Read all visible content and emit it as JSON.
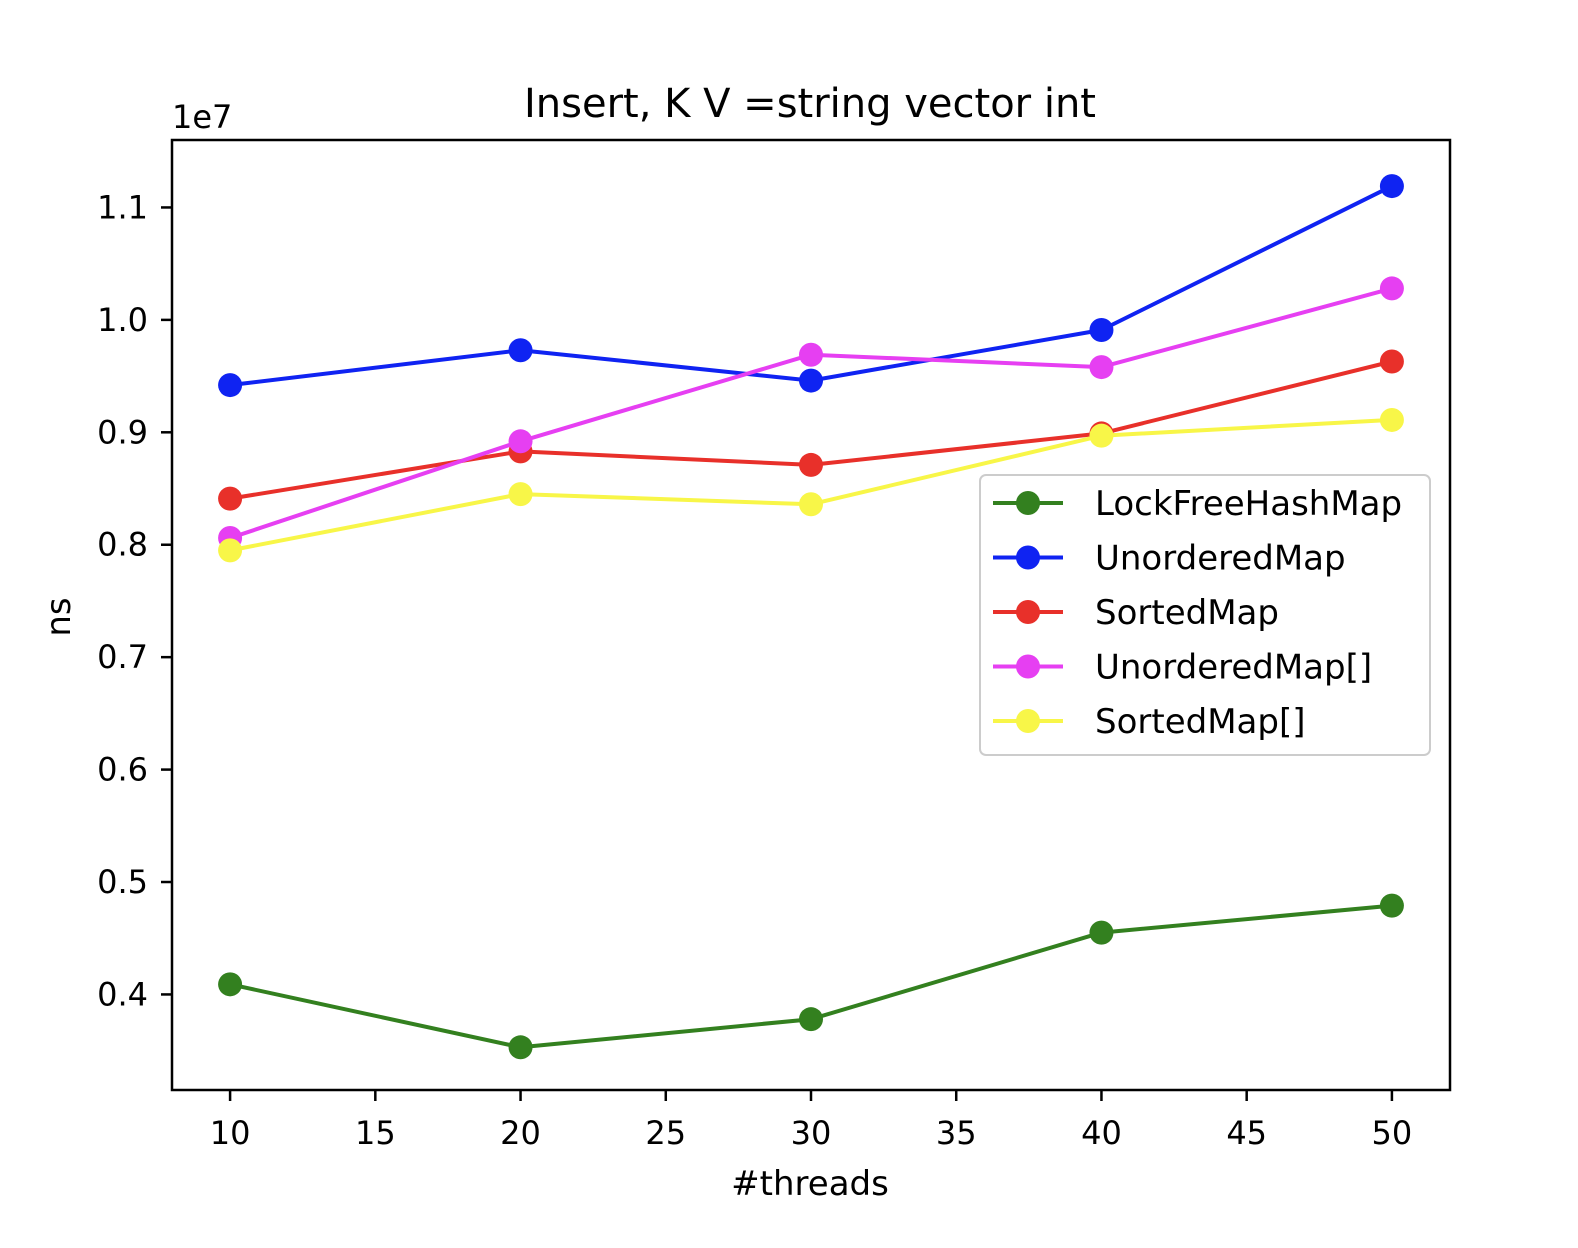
{
  "chart_data": {
    "type": "line",
    "title": "Insert, K V =string vector int",
    "xlabel": "#threads",
    "ylabel": "ns",
    "y_offset_label": "1e7",
    "x": [
      10,
      20,
      30,
      40,
      50
    ],
    "xlim": [
      8,
      52
    ],
    "ylim": [
      3150000,
      11600000
    ],
    "x_ticks": [
      10,
      15,
      20,
      25,
      30,
      35,
      40,
      45,
      50
    ],
    "x_tick_labels": [
      "10",
      "15",
      "20",
      "25",
      "30",
      "35",
      "40",
      "45",
      "50"
    ],
    "y_ticks": [
      4000000,
      5000000,
      6000000,
      7000000,
      8000000,
      9000000,
      10000000,
      11000000
    ],
    "y_tick_labels": [
      "0.4",
      "0.5",
      "0.6",
      "0.7",
      "0.8",
      "0.9",
      "1.0",
      "1.1"
    ],
    "grid": false,
    "legend_position": "center-right",
    "series": [
      {
        "name": "LockFreeHashMap",
        "color": "#33801f",
        "values": [
          4090000,
          3530000,
          3780000,
          4550000,
          4790000
        ]
      },
      {
        "name": "UnorderedMap",
        "color": "#0f23f2",
        "values": [
          9420000,
          9730000,
          9460000,
          9910000,
          11190000
        ]
      },
      {
        "name": "SortedMap",
        "color": "#e8302a",
        "values": [
          8410000,
          8830000,
          8710000,
          8990000,
          9630000
        ]
      },
      {
        "name": "UnorderedMap[]",
        "color": "#e63ff2",
        "values": [
          8060000,
          8920000,
          9690000,
          9580000,
          10280000
        ]
      },
      {
        "name": "SortedMap[]",
        "color": "#f8f648",
        "values": [
          7950000,
          8450000,
          8360000,
          8970000,
          9110000
        ]
      }
    ]
  }
}
